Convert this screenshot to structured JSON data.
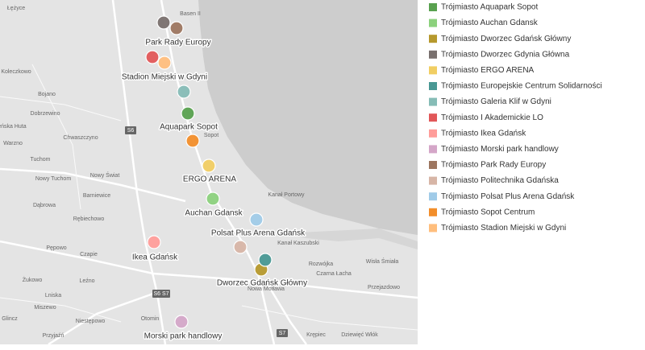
{
  "legend": {
    "items": [
      {
        "label": "Trójmiasto Aquapark Sopot",
        "color": "#59a14f"
      },
      {
        "label": "Trójmiasto Auchan Gdansk",
        "color": "#8cd17d"
      },
      {
        "label": "Trójmiasto Dworzec Gdańsk Główny",
        "color": "#b6992d"
      },
      {
        "label": "Trójmiasto Dworzec Gdynia Główna",
        "color": "#79706e"
      },
      {
        "label": "Trójmiasto ERGO ARENA",
        "color": "#f1ce63"
      },
      {
        "label": "Trójmiasto Europejskie Centrum Solidarności",
        "color": "#499894"
      },
      {
        "label": "Trójmiasto Galeria Klif w Gdyni",
        "color": "#86bcb6"
      },
      {
        "label": "Trójmiasto I Akademickie LO",
        "color": "#e15759"
      },
      {
        "label": "Trójmiasto Ikea Gdańsk",
        "color": "#ff9d9a"
      },
      {
        "label": "Trójmiasto Morski park handlowy",
        "color": "#d4a6c8"
      },
      {
        "label": "Trójmiasto Park Rady Europy",
        "color": "#9d7660"
      },
      {
        "label": "Trójmiasto Politechnika Gdańska",
        "color": "#d7b5a6"
      },
      {
        "label": "Trójmiasto Polsat Plus Arena Gdańsk",
        "color": "#a0cbe8"
      },
      {
        "label": "Trójmiasto Sopot Centrum",
        "color": "#f28e2b"
      },
      {
        "label": "Trójmiasto Stadion Miejski w Gdyni",
        "color": "#ffbe7d"
      }
    ]
  },
  "map": {
    "point_labels": [
      "Park Rady Europy",
      "Stadion Miejski w Gdyni",
      "Aquapark Sopot",
      "ERGO ARENA",
      "Auchan Gdansk",
      "Polsat Plus Arena Gdańsk",
      "Ikea Gdańsk",
      "Dworzec Gdańsk Główny",
      "Morski park handlowy"
    ],
    "place_names": [
      "Łężyce",
      "Basen II",
      "Koleczkowo",
      "Bojano",
      "Dobrzewino",
      "rzeńska Huta",
      "Warzno",
      "Chwaszczyno",
      "Nowy Tuchom",
      "Tuchom",
      "Nowy Świat",
      "Barniewice",
      "Dąbrowa",
      "Rębiechowo",
      "Kanał Portowy",
      "Kanał Kaszubski",
      "Pępowo",
      "Czapie",
      "Żukowo",
      "Leźno",
      "Lniska",
      "Miszewo",
      "Otomin",
      "Glincz",
      "Przyjaźń",
      "Niestępowo",
      "Sopot",
      "Wisła Śmiała",
      "Przejazdowo",
      "Krępiec",
      "Dziewięć Włók",
      "Czarna Łacha",
      "Rozwójka",
      "Nowa Motława"
    ],
    "road_numbers": [
      "S6",
      "S6 S7",
      "S7"
    ]
  }
}
